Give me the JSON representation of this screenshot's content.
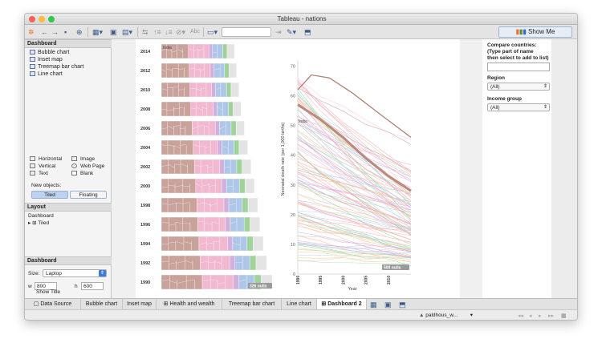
{
  "window": {
    "title": "Tableau - nations"
  },
  "colors": {
    "accent": "#3d7bdc",
    "line_highlight": "#b98a80",
    "tile_brown": "#c9a39b",
    "tile_pink": "#f1b8d0",
    "tile_blue": "#aec6e8",
    "tile_green": "#9fd39a"
  },
  "toolbar": {
    "icons": [
      "tableau-logo-icon",
      "back-icon",
      "forward-icon",
      "save-icon",
      "add-datasource-icon",
      "new-sheet-icon",
      "duplicate-sheet-icon",
      "clear-sheet-icon",
      "swap-icon",
      "sort-asc-icon",
      "sort-desc-icon",
      "group-icon",
      "label-icon",
      "fit-icon",
      "highlight-icon",
      "pin-icon",
      "presentation-icon"
    ],
    "label_text": "Abc",
    "show_me_label": "Show Me"
  },
  "dashboard_panel": {
    "title": "Dashboard",
    "sheets": [
      {
        "label": "Bubble chart"
      },
      {
        "label": "Inset map"
      },
      {
        "label": "Treemap bar chart"
      },
      {
        "label": "Line chart"
      }
    ],
    "objects": [
      {
        "label": "Horizontal"
      },
      {
        "label": "Image"
      },
      {
        "label": "Vertical"
      },
      {
        "label": "Web Page"
      },
      {
        "label": "Text"
      },
      {
        "label": "Blank"
      }
    ],
    "new_objects_label": "New objects:",
    "tiled_label": "Tiled",
    "floating_label": "Floating"
  },
  "layout_panel": {
    "title": "Layout",
    "tree_root": "Dashboard",
    "tree_child": "Tiled"
  },
  "dashboard_size_panel": {
    "title": "Dashboard",
    "size_label": "Size:",
    "size_value": "Laptop",
    "w_label": "w",
    "w_value": "800",
    "h_label": "h",
    "h_value": "600",
    "show_title_label": "Show Title"
  },
  "treemap": {
    "years": [
      "2014",
      "2012",
      "2010",
      "2008",
      "2006",
      "2004",
      "2002",
      "2000",
      "1998",
      "1996",
      "1994",
      "1992",
      "1990"
    ],
    "fill": [
      0.66,
      0.68,
      0.7,
      0.72,
      0.75,
      0.78,
      0.81,
      0.84,
      0.87,
      0.89,
      0.92,
      0.95,
      1.0
    ],
    "top_label": "India",
    "nulls_label": "326 nulls"
  },
  "line_chart": {
    "y_axis_title": "Neonatal death rate (per 1,000 births)",
    "y_ticks": [
      "70",
      "60",
      "50",
      "40",
      "30",
      "20",
      "10",
      "0"
    ],
    "x_ticks": [
      "1990",
      "1995",
      "2000",
      "2005",
      "2010"
    ],
    "x_axis_title": "Year",
    "india_label": "India",
    "nulls_label": "500 nulls"
  },
  "filters": {
    "compare_title_1": "Compare countries:",
    "compare_title_2": "(Type part of name",
    "compare_title_3": "then select to add to list)",
    "region_title": "Region",
    "region_value": "(All)",
    "income_title": "Income group",
    "income_value": "(All)"
  },
  "tabs": [
    {
      "label": "Data Source",
      "active": false
    },
    {
      "label": "Bubble chart",
      "active": false
    },
    {
      "label": "Inset map",
      "active": false
    },
    {
      "label": "Health and wealth",
      "active": false
    },
    {
      "label": "Treemap bar chart",
      "active": false
    },
    {
      "label": "Line chart",
      "active": false
    },
    {
      "label": "Dashboard 2",
      "active": true
    }
  ],
  "status": {
    "user": "paldhous_w..."
  }
}
